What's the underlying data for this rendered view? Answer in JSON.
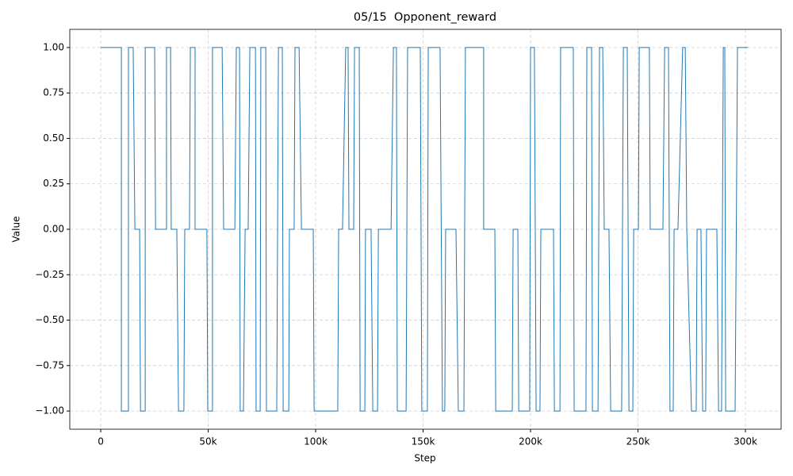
{
  "chart_data": {
    "type": "line",
    "title": "05/15  Opponent_reward",
    "x_label": "Step",
    "y_label": "Value",
    "color": "#1f77b4",
    "grid": true,
    "x": [
      0,
      9600,
      9600,
      12900,
      12900,
      15100,
      15900,
      18100,
      18500,
      20700,
      20700,
      25100,
      25500,
      30600,
      30600,
      32500,
      32800,
      35400,
      36200,
      38700,
      39100,
      41300,
      41700,
      43900,
      43900,
      49400,
      49800,
      52000,
      52000,
      56500,
      57200,
      62400,
      63100,
      64600,
      64900,
      66400,
      67200,
      68600,
      69400,
      72000,
      72300,
      74200,
      74500,
      76800,
      77100,
      81900,
      82700,
      84500,
      84900,
      87500,
      87800,
      90000,
      90400,
      92300,
      93400,
      98900,
      99300,
      110300,
      110700,
      112500,
      114000,
      115100,
      115500,
      117700,
      118100,
      120300,
      120700,
      122900,
      123200,
      125800,
      126600,
      128800,
      129200,
      135100,
      136200,
      137600,
      138000,
      142100,
      142800,
      148700,
      149400,
      152000,
      152400,
      157900,
      159000,
      160100,
      160500,
      165300,
      166400,
      169000,
      169700,
      178200,
      178200,
      183400,
      183800,
      191500,
      191900,
      194100,
      194500,
      199600,
      200000,
      201800,
      202600,
      204400,
      204800,
      210700,
      211100,
      213700,
      214000,
      219900,
      220300,
      225800,
      226200,
      228400,
      228800,
      231400,
      232100,
      233600,
      234300,
      236500,
      237300,
      242400,
      243200,
      245000,
      245800,
      247600,
      248000,
      250200,
      250600,
      255300,
      255700,
      261600,
      262400,
      264200,
      264900,
      266400,
      266800,
      268600,
      270800,
      272000,
      272700,
      274900,
      277100,
      277500,
      279300,
      280100,
      281500,
      281900,
      286700,
      287500,
      288900,
      289700,
      290400,
      290800,
      295200,
      296300,
      301100
    ],
    "values": [
      1,
      1,
      -1,
      -1,
      1,
      1,
      0,
      0,
      -1,
      -1,
      1,
      1,
      0,
      0,
      1,
      1,
      0,
      0,
      -1,
      -1,
      0,
      0,
      1,
      1,
      0,
      0,
      -1,
      -1,
      1,
      1,
      0,
      0,
      1,
      1,
      -1,
      -1,
      0,
      0,
      1,
      1,
      -1,
      -1,
      1,
      1,
      -1,
      -1,
      1,
      1,
      -1,
      -1,
      0,
      0,
      1,
      1,
      0,
      0,
      -1,
      -1,
      0,
      0,
      1,
      1,
      0,
      0,
      1,
      1,
      -1,
      -1,
      0,
      0,
      -1,
      -1,
      0,
      0,
      1,
      1,
      -1,
      -1,
      1,
      1,
      -1,
      -1,
      1,
      1,
      -1,
      -1,
      0,
      0,
      -1,
      -1,
      1,
      1,
      0,
      0,
      -1,
      -1,
      0,
      0,
      -1,
      -1,
      1,
      1,
      -1,
      -1,
      0,
      0,
      -1,
      -1,
      1,
      1,
      -1,
      -1,
      1,
      1,
      -1,
      -1,
      1,
      1,
      0,
      0,
      -1,
      -1,
      1,
      1,
      -1,
      -1,
      0,
      0,
      1,
      1,
      0,
      0,
      1,
      1,
      -1,
      -1,
      0,
      0,
      1,
      1,
      0,
      -1,
      -1,
      0,
      0,
      -1,
      -1,
      0,
      0,
      -1,
      -1,
      1,
      1,
      -1,
      -1,
      1,
      1
    ],
    "xlim": [
      -14400,
      316600
    ],
    "xticks": [
      0,
      {
        "value": 50000,
        "label": "50k"
      },
      {
        "value": 100000,
        "label": "100k"
      },
      {
        "value": 150000,
        "label": "150k"
      },
      {
        "value": 200000,
        "label": "200k"
      },
      {
        "value": 250000,
        "label": "250k"
      },
      {
        "value": 300000,
        "label": "300k"
      }
    ],
    "ylim": [
      -1.1,
      1.1
    ],
    "yticks": [
      {
        "value": -1,
        "label": "−1.00"
      },
      {
        "value": -0.75,
        "label": "−0.75"
      },
      {
        "value": -0.5,
        "label": "−0.50"
      },
      {
        "value": -0.25,
        "label": "−0.25"
      },
      {
        "value": 0,
        "label": "0.00"
      },
      {
        "value": 0.25,
        "label": "0.25"
      },
      {
        "value": 0.5,
        "label": "0.50"
      },
      {
        "value": 0.75,
        "label": "0.75"
      },
      {
        "value": 1,
        "label": "1.00"
      }
    ]
  }
}
